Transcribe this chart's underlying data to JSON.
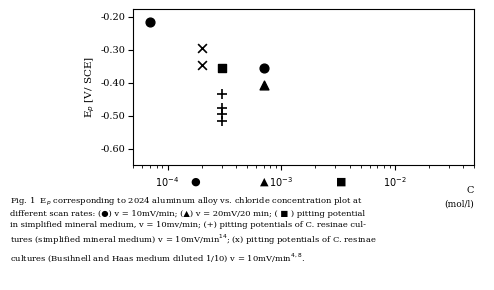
{
  "ylabel": "E$_p$ [V/ SCE]",
  "xlim": [
    5e-05,
    0.05
  ],
  "ylim": [
    -0.65,
    -0.175
  ],
  "yticks": [
    -0.2,
    -0.3,
    -0.4,
    -0.5,
    -0.6
  ],
  "series": {
    "circle": {
      "x": [
        7e-05,
        0.0007
      ],
      "y": [
        -0.215,
        -0.355
      ],
      "marker": "o",
      "color": "black",
      "size": 40
    },
    "triangle": {
      "x": [
        0.0007
      ],
      "y": [
        -0.405
      ],
      "marker": "^",
      "color": "black",
      "size": 40
    },
    "square": {
      "x": [
        0.0003
      ],
      "y": [
        -0.355
      ],
      "marker": "s",
      "color": "black",
      "size": 40
    },
    "cross": {
      "x": [
        0.0003,
        0.0003,
        0.0003,
        0.0003
      ],
      "y": [
        -0.435,
        -0.475,
        -0.495,
        -0.515
      ],
      "marker": "+",
      "color": "black",
      "size": 50
    },
    "x_mark": {
      "x": [
        0.0002,
        0.0002
      ],
      "y": [
        -0.295,
        -0.345
      ],
      "marker": "x",
      "color": "black",
      "size": 40
    }
  },
  "legend_circle_xfig": 0.395,
  "legend_triangle_xfig": 0.535,
  "legend_square_xfig": 0.69,
  "legend_yfig": 0.375
}
